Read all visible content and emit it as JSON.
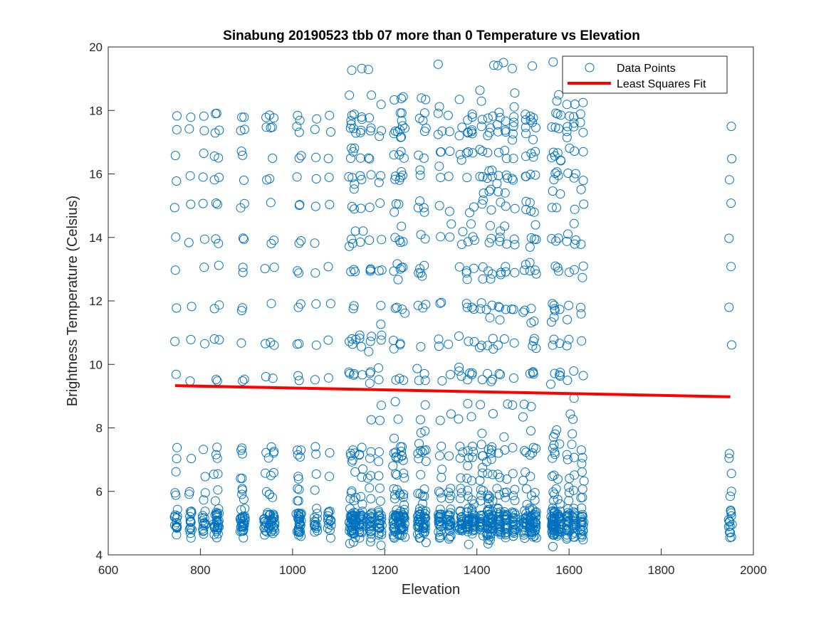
{
  "chart_data": {
    "type": "scatter",
    "title": "Sinabung 20190523 tbb 07 more than 0 Temperature vs Elevation",
    "xlabel": "Elevation",
    "ylabel": "Brightness Temperature (Celsius)",
    "xlim": [
      600,
      2000
    ],
    "ylim": [
      4,
      20
    ],
    "xticks": [
      600,
      800,
      1000,
      1200,
      1400,
      1600,
      1800,
      2000
    ],
    "yticks": [
      4,
      6,
      8,
      10,
      12,
      14,
      16,
      18,
      20
    ],
    "grid": false,
    "legend": {
      "position": "top-right",
      "entries": [
        "Data Points",
        "Least Squares Fit"
      ]
    },
    "colors": {
      "points": "#0072BD",
      "fit": "#FF0000",
      "axes": "#262626"
    },
    "series": [
      {
        "name": "Data Points",
        "marker": "circle-open",
        "elevations": [
          747,
          778,
          808,
          832,
          838,
          890,
          893,
          942,
          951,
          958,
          1012,
          1016,
          1050,
          1080,
          1127,
          1133,
          1148,
          1168,
          1190,
          1222,
          1232,
          1240,
          1275,
          1285,
          1320,
          1340,
          1365,
          1380,
          1392,
          1410,
          1425,
          1432,
          1448,
          1462,
          1480,
          1505,
          1518,
          1525,
          1565,
          1570,
          1578,
          1598,
          1610,
          1628,
          1950
        ],
        "temperatures_lower": [
          4.7,
          4.8,
          4.9,
          5.0,
          5.1,
          5.2,
          5.3
        ],
        "temperatures_upper": [
          5.8,
          6.0,
          6.5,
          7.1,
          7.3,
          9.6,
          10.7,
          11.8,
          13.0,
          13.9,
          15.0,
          15.9,
          16.6,
          17.4,
          17.8
        ],
        "temperatures_extra": [
          4.4,
          4.5,
          5.5,
          6.8,
          7.8,
          8.3,
          8.8,
          9.8,
          10.5,
          11.4,
          12.8,
          14.3,
          15.4,
          16.3,
          17.2,
          18.2,
          18.5,
          19.4
        ],
        "summary": {
          "count_estimate": 1100,
          "x_range": [
            745,
            1950
          ],
          "y_range": [
            4.3,
            19.4
          ]
        }
      },
      {
        "name": "Least Squares Fit",
        "line": true,
        "x": [
          745,
          1950
        ],
        "y": [
          9.33,
          8.98
        ]
      }
    ]
  }
}
